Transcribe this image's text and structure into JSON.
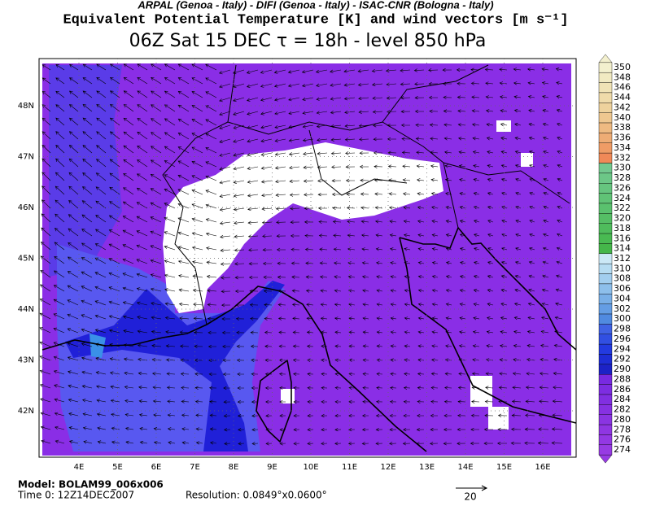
{
  "header": {
    "institutions": "ARPAL (Genoa - Italy)  -  DIFI (Genoa - Italy)  -  ISAC-CNR (Bologna - Italy)",
    "field": "Equivalent Potential Temperature [K] and wind vectors [m s⁻¹]",
    "time_level": "06Z Sat 15 DEC  τ = 18h  -  level 850 hPa"
  },
  "map": {
    "lat_labels": [
      "48N",
      "47N",
      "46N",
      "45N",
      "44N",
      "43N",
      "42N"
    ],
    "lon_labels": [
      "4E",
      "5E",
      "6E",
      "7E",
      "8E",
      "9E",
      "10E",
      "11E",
      "12E",
      "13E",
      "14E",
      "15E",
      "16E"
    ]
  },
  "colorbar": {
    "labels": [
      350,
      348,
      346,
      344,
      342,
      340,
      338,
      336,
      334,
      332,
      330,
      328,
      326,
      324,
      322,
      320,
      318,
      316,
      314,
      312,
      310,
      308,
      306,
      304,
      302,
      300,
      298,
      296,
      294,
      292,
      290,
      288,
      286,
      284,
      282,
      280,
      278,
      276,
      274
    ]
  },
  "footer": {
    "model": "Model: BOLAM99_006x006",
    "time0": "Time 0: 12Z14DEC2007",
    "resolution": "Resolution: 0.0849°x0.0600°",
    "vector_key": "20"
  }
}
